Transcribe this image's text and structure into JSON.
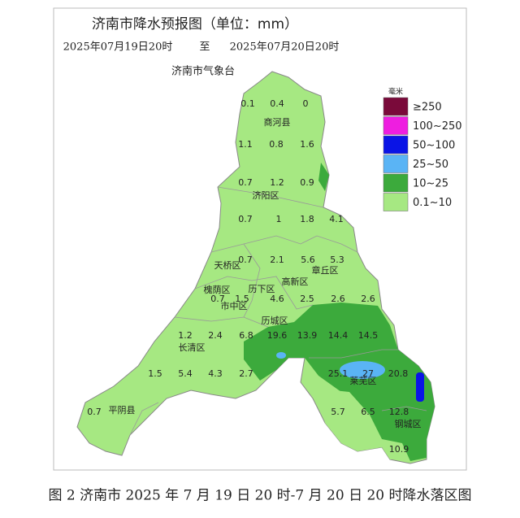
{
  "header": {
    "title": "济南市降水预报图（单位：mm）",
    "date_start": "2025年07月19日20时",
    "date_sep": "至",
    "date_end": "2025年07月20日20时",
    "issuer": "济南市气象台"
  },
  "legend": {
    "unit": "毫米",
    "items": [
      {
        "label": "≥250",
        "color": "#7a0a3a"
      },
      {
        "label": "100~250",
        "color": "#ee1ee0"
      },
      {
        "label": "50~100",
        "color": "#0a14e6"
      },
      {
        "label": "25~50",
        "color": "#5ab4f5"
      },
      {
        "label": "10~25",
        "color": "#3caa3c"
      },
      {
        "label": "0.1~10",
        "color": "#a6e882"
      }
    ]
  },
  "districts": [
    "商河县",
    "济阳区",
    "天桥区",
    "槐荫区",
    "历下区",
    "市中区",
    "高新区",
    "历城区",
    "章丘区",
    "长清区",
    "莱芜区",
    "钢城区",
    "平阴县"
  ],
  "values": [
    "0.1",
    "0.4",
    "0",
    "1.1",
    "0.8",
    "1.6",
    "0.7",
    "1.2",
    "0.9",
    "0.7",
    "1",
    "1.8",
    "4.1",
    "0.7",
    "2.1",
    "5.6",
    "5.3",
    "0.7",
    "1.5",
    "4.6",
    "2.5",
    "2.6",
    "2.6",
    "1.2",
    "2.4",
    "6.8",
    "19.6",
    "13.9",
    "14.4",
    "14.5",
    "1.5",
    "5.4",
    "4.3",
    "2.7",
    "25.1",
    "27",
    "20.8",
    "0.7",
    "5.7",
    "6.5",
    "12.8",
    "10.9"
  ],
  "caption": "图 2 济南市 2025 年 7 月 19 日 20 时-7 月 20 日 20 时降水落区图"
}
